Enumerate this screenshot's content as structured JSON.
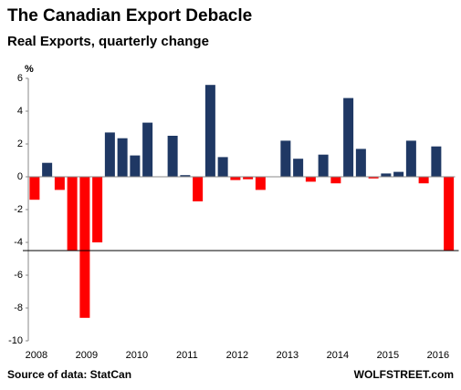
{
  "chart_data": {
    "type": "bar",
    "title": "The Canadian Export Debacle",
    "subtitle": "Real Exports, quarterly change",
    "y_unit_label": "%",
    "categories": [
      "2008",
      null,
      null,
      null,
      "2009",
      null,
      null,
      null,
      "2010",
      null,
      null,
      null,
      "2011",
      null,
      null,
      null,
      "2012",
      null,
      null,
      null,
      "2013",
      null,
      null,
      null,
      "2014",
      null,
      null,
      null,
      "2015",
      null,
      null,
      null,
      "2016",
      null
    ],
    "values": [
      -1.4,
      0.85,
      -0.8,
      -4.5,
      -8.6,
      -4.0,
      2.7,
      2.35,
      1.3,
      3.3,
      0,
      2.5,
      0.1,
      -1.5,
      5.6,
      1.2,
      -0.2,
      -0.15,
      -0.8,
      0,
      2.2,
      1.1,
      -0.3,
      1.35,
      -0.4,
      4.8,
      1.7,
      -0.1,
      0.2,
      0.3,
      2.2,
      -0.4,
      1.85,
      -4.5
    ],
    "positive_color": "#1f3864",
    "negative_color": "#ff0000",
    "reference_line": -4.5,
    "ylim": [
      -10,
      6
    ],
    "yticks": [
      -10,
      -8,
      -6,
      -4,
      -2,
      0,
      2,
      4,
      6
    ],
    "grid": false,
    "source": "Source of data: StatCan",
    "credit": "WOLFSTREET.com"
  }
}
